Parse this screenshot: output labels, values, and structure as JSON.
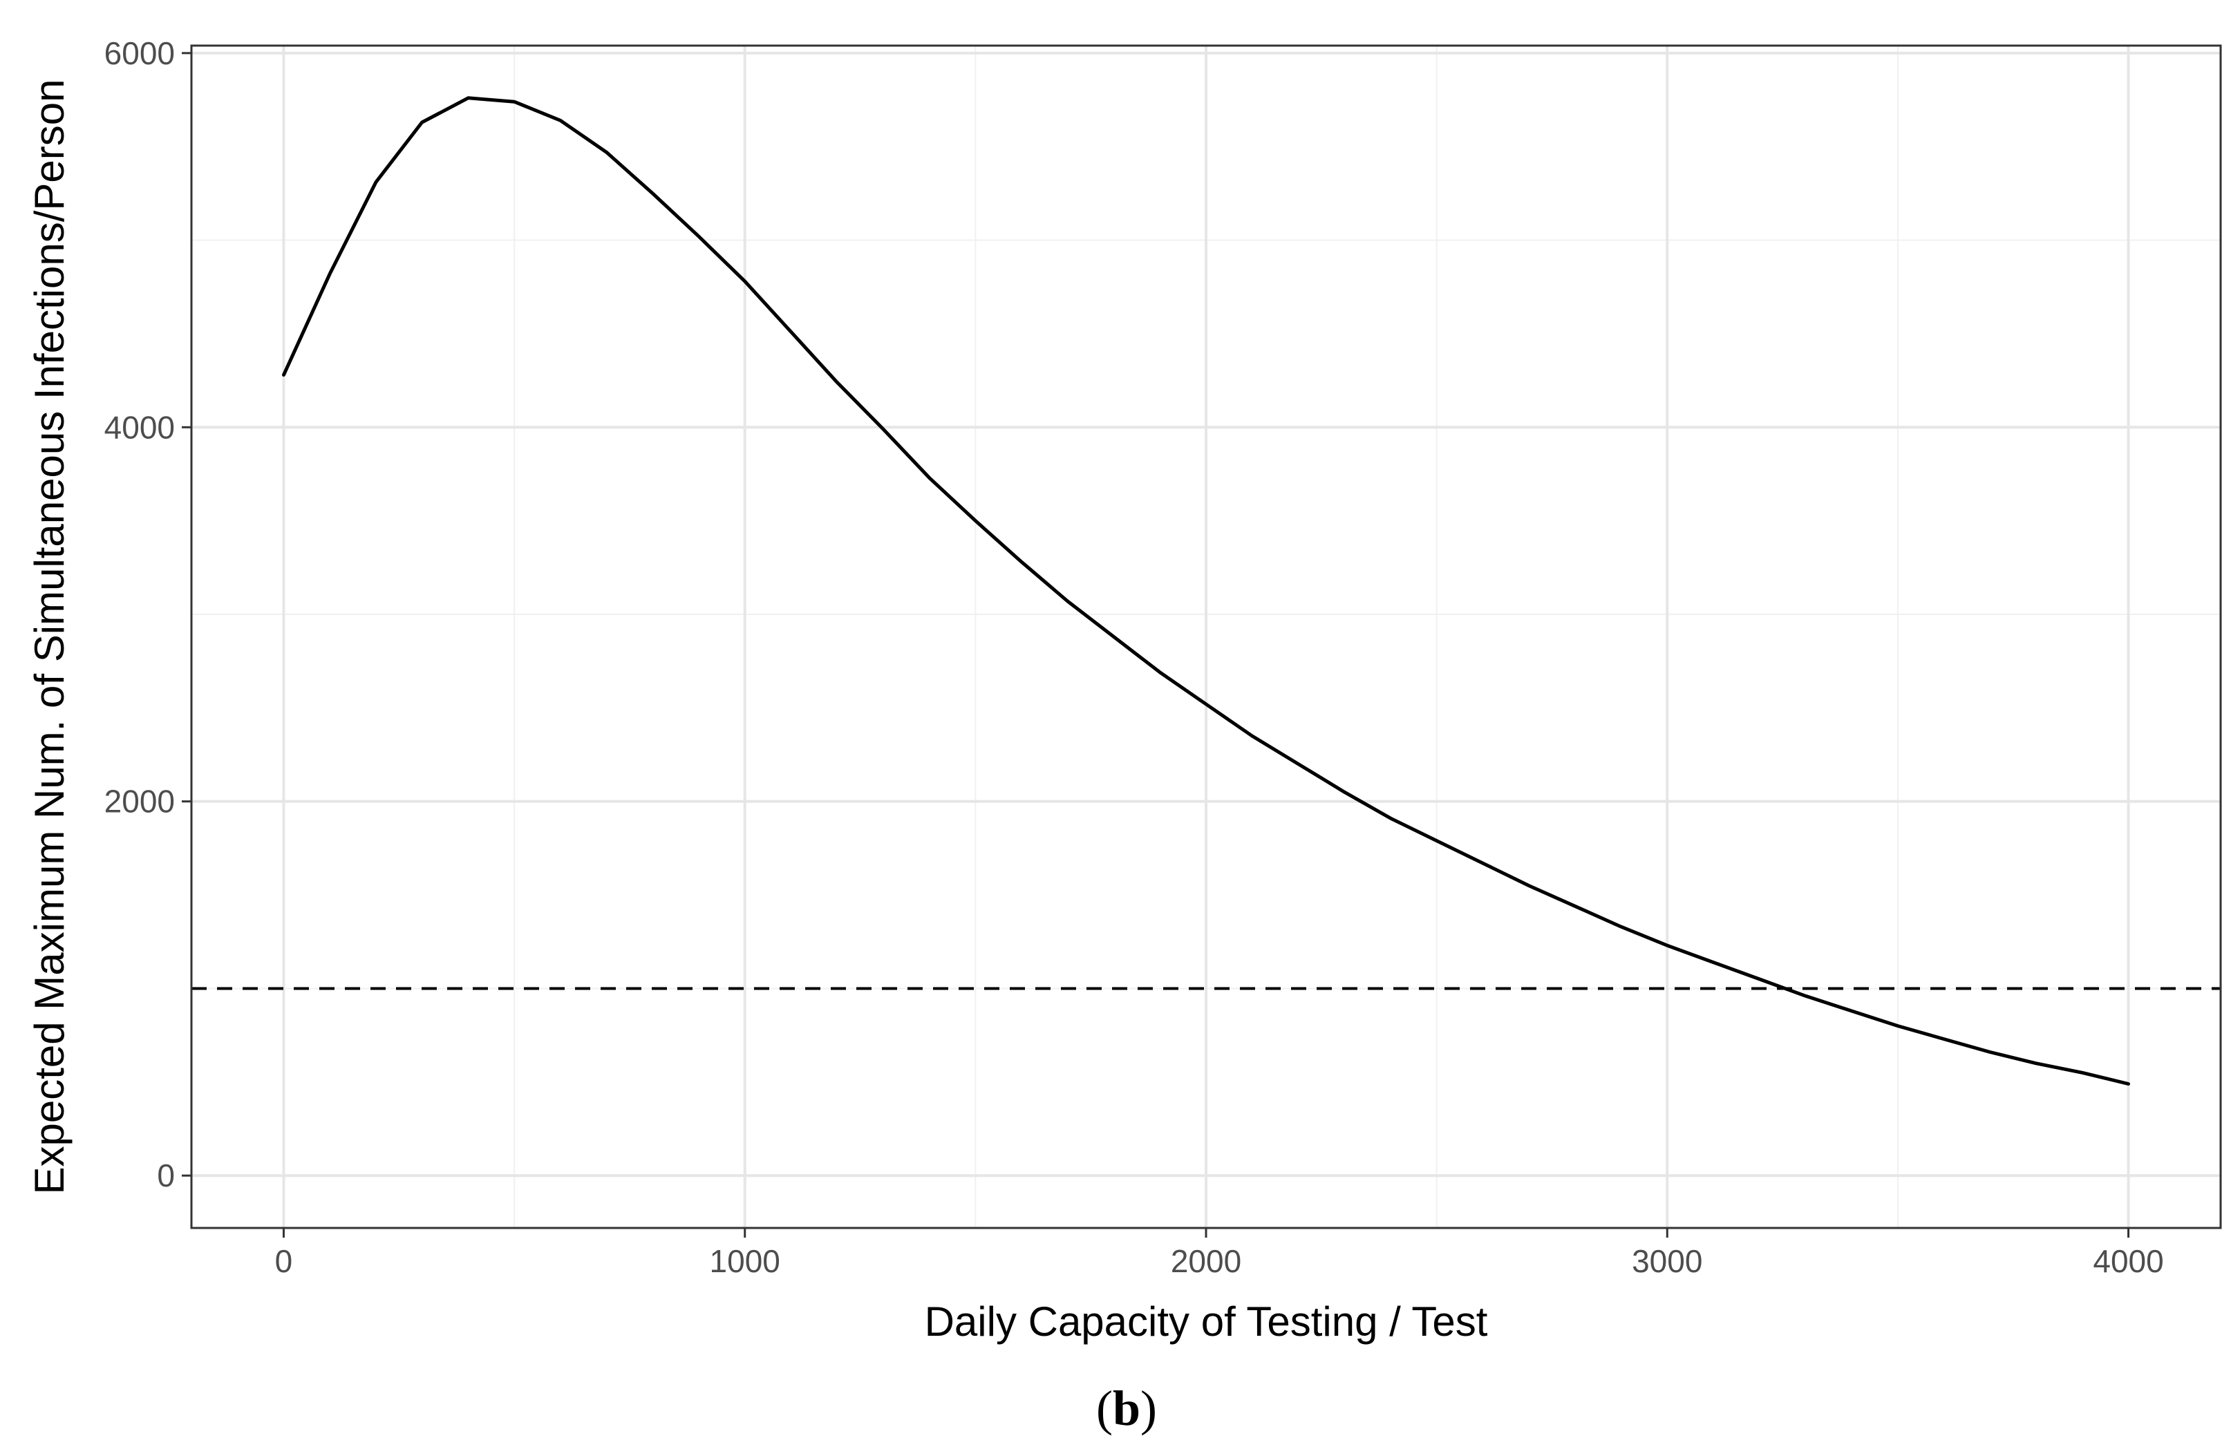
{
  "caption_letter": "b",
  "chart_data": {
    "type": "line",
    "title": "",
    "xlabel": "Daily Capacity of Testing / Test",
    "ylabel": "Expected Maximum Num. of Simultaneous Infections/Person",
    "xlim": [
      -200,
      4200
    ],
    "ylim": [
      -280,
      6040
    ],
    "x_ticks": [
      0,
      1000,
      2000,
      3000,
      4000
    ],
    "x_tick_labels": [
      "0",
      "1000",
      "2000",
      "3000",
      "4000"
    ],
    "x_minor_ticks": [
      500,
      1500,
      2500,
      3500
    ],
    "y_ticks": [
      0,
      2000,
      4000,
      6000
    ],
    "y_tick_labels": [
      "0",
      "2000",
      "4000",
      "6000"
    ],
    "y_minor_ticks": [
      1000,
      3000,
      5000
    ],
    "grid": true,
    "series": [
      {
        "style": "solid",
        "color": "#000000",
        "x": [
          0,
          100,
          200,
          300,
          400,
          500,
          600,
          700,
          800,
          900,
          1000,
          1100,
          1200,
          1300,
          1400,
          1500,
          1600,
          1700,
          1800,
          1900,
          2000,
          2100,
          2200,
          2300,
          2400,
          2500,
          2600,
          2700,
          2800,
          2900,
          3000,
          3100,
          3200,
          3300,
          3400,
          3500,
          3600,
          3700,
          3800,
          3900,
          4000
        ],
        "y": [
          4280,
          4820,
          5310,
          5630,
          5760,
          5740,
          5640,
          5470,
          5250,
          5020,
          4780,
          4510,
          4240,
          3990,
          3730,
          3500,
          3280,
          3070,
          2880,
          2690,
          2520,
          2350,
          2200,
          2050,
          1910,
          1790,
          1670,
          1550,
          1440,
          1330,
          1230,
          1140,
          1050,
          960,
          880,
          800,
          730,
          660,
          600,
          550,
          490
        ]
      }
    ],
    "reference_lines": [
      {
        "orientation": "horizontal",
        "y": 1000,
        "style": "dashed",
        "color": "#000000"
      }
    ]
  }
}
